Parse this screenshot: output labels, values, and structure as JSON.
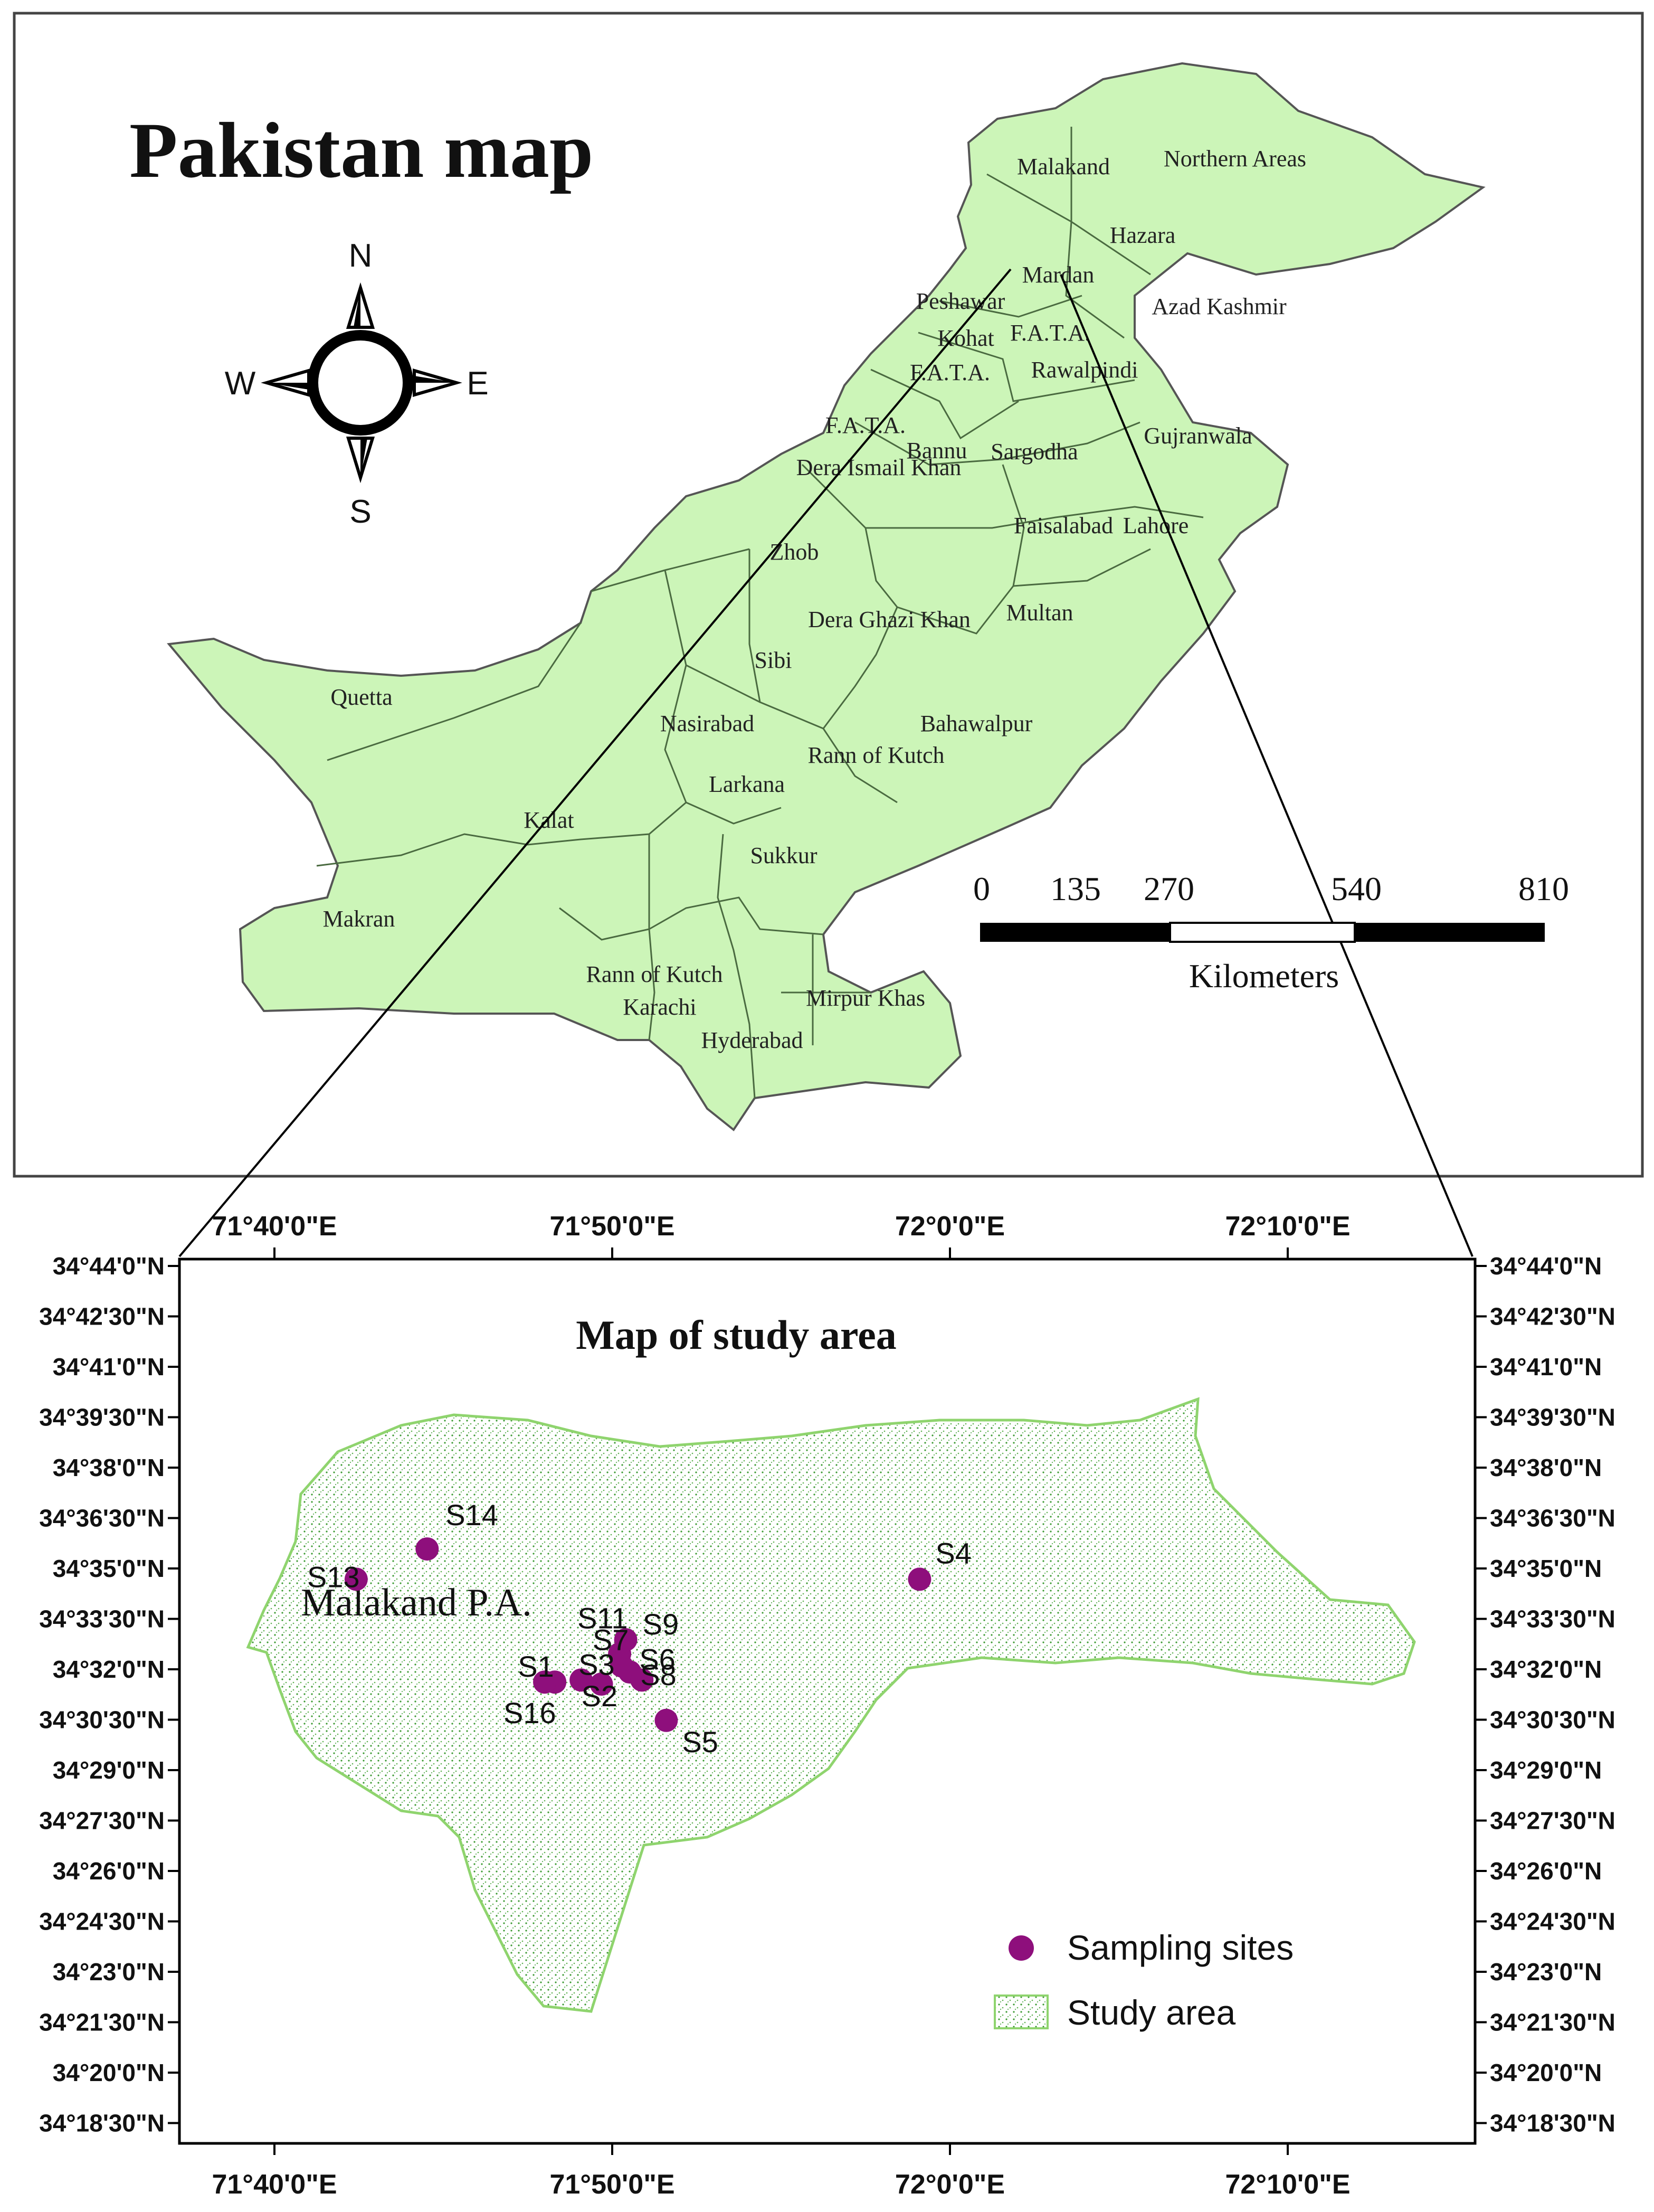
{
  "main_map": {
    "title": "Pakistan map",
    "compass": {
      "n": "N",
      "e": "E",
      "s": "S",
      "w": "W"
    },
    "regions": [
      "Malakand",
      "Northern Areas",
      "Hazara",
      "Mardan",
      "Peshawar",
      "Azad Kashmir",
      "Kohat",
      "F.A.T.A.",
      "F.A.T.A.",
      "Rawalpindi",
      "Bannu",
      "F.A.T.A.",
      "Sargodha",
      "Gujranwala",
      "Dera Ismail Khan",
      "Faisalabad",
      "Lahore",
      "Zhob",
      "Dera Ghazi Khan",
      "Multan",
      "Sibi",
      "Quetta",
      "Nasirabad",
      "Bahawalpur",
      "Rann of Kutch",
      "Larkana",
      "Kalat",
      "Sukkur",
      "Makran",
      "Rann of Kutch",
      "Karachi",
      "Mirpur Khas",
      "Hyderabad"
    ],
    "scale_bar": {
      "ticks": [
        "0",
        "135",
        "270",
        "540",
        "810"
      ],
      "unit": "Kilometers"
    }
  },
  "study_map": {
    "title": "Map of study area",
    "place_label": "Malakand P.A.",
    "x_ticks": [
      "71°40'0\"E",
      "71°50'0\"E",
      "72°0'0\"E",
      "72°10'0\"E"
    ],
    "y_ticks": [
      "34°44'0\"N",
      "34°42'30\"N",
      "34°41'0\"N",
      "34°39'30\"N",
      "34°38'0\"N",
      "34°36'30\"N",
      "34°35'0\"N",
      "34°33'30\"N",
      "34°32'0\"N",
      "34°30'30\"N",
      "34°29'0\"N",
      "34°27'30\"N",
      "34°26'0\"N",
      "34°24'30\"N",
      "34°23'0\"N",
      "34°21'30\"N",
      "34°20'0\"N",
      "34°18'30\"N"
    ],
    "sites": [
      {
        "label": "S1",
        "lon": 71.805,
        "lat": 34.527
      },
      {
        "label": "S2",
        "lon": 71.828,
        "lat": 34.526
      },
      {
        "label": "S3",
        "lon": 71.818,
        "lat": 34.528
      },
      {
        "label": "S7",
        "lon": 71.838,
        "lat": 34.535
      },
      {
        "label": "S8",
        "lon": 71.842,
        "lat": 34.532
      },
      {
        "label": "S9",
        "lon": 71.84,
        "lat": 34.548
      },
      {
        "label": "S11",
        "lon": 71.837,
        "lat": 34.541
      },
      {
        "label": "S6",
        "lon": 71.848,
        "lat": 34.528
      },
      {
        "label": "S5",
        "lon": 71.86,
        "lat": 34.508
      },
      {
        "label": "S4",
        "lon": 71.985,
        "lat": 34.578
      },
      {
        "label": "S13",
        "lon": 71.707,
        "lat": 34.578
      },
      {
        "label": "S14",
        "lon": 71.742,
        "lat": 34.593
      },
      {
        "label": "S16",
        "lon": 71.8,
        "lat": 34.527
      }
    ],
    "legend": {
      "sites": "Sampling sites",
      "area": "Study area"
    },
    "colors": {
      "site": "#8e0f7c",
      "area_stroke": "#8fd46e",
      "area_dot": "#3c9a32",
      "land": "#ccf5b8"
    }
  }
}
